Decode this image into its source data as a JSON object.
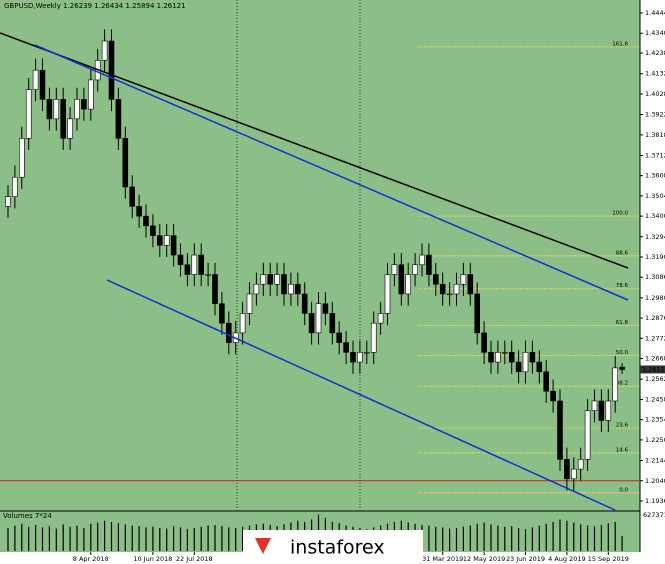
{
  "chart_data": {
    "type": "candlestick",
    "title": "GBPUSD,Weekly  1.26239 1.26434 1.25894 1.26121",
    "last_price": {
      "value": 1.26121,
      "label": "1.26121"
    },
    "ylim": [
      1.1936,
      1.4444
    ],
    "yticks": [
      {
        "value": 1.4444,
        "label": "1.44440"
      },
      {
        "value": 1.434,
        "label": "1.43400"
      },
      {
        "value": 1.4238,
        "label": "1.42380"
      },
      {
        "value": 1.4132,
        "label": "1.41320"
      },
      {
        "value": 1.4028,
        "label": "1.40280"
      },
      {
        "value": 1.3922,
        "label": "1.39220"
      },
      {
        "value": 1.3818,
        "label": "1.38180"
      },
      {
        "value": 1.3712,
        "label": "1.37120"
      },
      {
        "value": 1.3608,
        "label": "1.36080"
      },
      {
        "value": 1.3504,
        "label": "1.35040"
      },
      {
        "value": 1.34,
        "label": "1.34000"
      },
      {
        "value": 1.3294,
        "label": "1.32940"
      },
      {
        "value": 1.319,
        "label": "1.31900"
      },
      {
        "value": 1.3086,
        "label": "1.30860"
      },
      {
        "value": 1.298,
        "label": "1.29800"
      },
      {
        "value": 1.2876,
        "label": "1.28760"
      },
      {
        "value": 1.2772,
        "label": "1.27720"
      },
      {
        "value": 1.2668,
        "label": "1.26680"
      },
      {
        "value": 1.2562,
        "label": "1.25620"
      },
      {
        "value": 1.2458,
        "label": "1.24580"
      },
      {
        "value": 1.2354,
        "label": "1.23540"
      },
      {
        "value": 1.225,
        "label": "1.22500"
      },
      {
        "value": 1.2144,
        "label": "1.21440"
      },
      {
        "value": 1.204,
        "label": "1.20400"
      },
      {
        "value": 1.1936,
        "label": "1.19360"
      }
    ],
    "categories": [
      null,
      null,
      null,
      null,
      null,
      null,
      null,
      null,
      null,
      null,
      null,
      null,
      "8 Apr 2018",
      null,
      null,
      null,
      null,
      null,
      null,
      null,
      null,
      "10 Jun 2018",
      null,
      null,
      null,
      null,
      null,
      "22 Jul 2018",
      null,
      null,
      null,
      null,
      null,
      null,
      null,
      null,
      null,
      null,
      null,
      null,
      null,
      null,
      null,
      null,
      null,
      null,
      null,
      null,
      null,
      null,
      null,
      null,
      null,
      null,
      null,
      null,
      null,
      null,
      null,
      null,
      null,
      null,
      null,
      "31 Mar 2019",
      null,
      null,
      null,
      null,
      null,
      "12 May 2019",
      null,
      null,
      null,
      null,
      null,
      "23 Jun 2019",
      null,
      null,
      null,
      null,
      null,
      "4 Aug 2019",
      null,
      null,
      null,
      null,
      null,
      "15 Sep 2019",
      null,
      null
    ],
    "open": [
      1.345,
      1.35,
      1.36,
      1.38,
      1.405,
      1.415,
      1.4,
      1.39,
      1.4,
      1.38,
      1.39,
      1.4,
      1.395,
      1.41,
      1.42,
      1.43,
      1.4,
      1.38,
      1.355,
      1.345,
      1.34,
      1.335,
      1.33,
      1.325,
      1.33,
      1.32,
      1.315,
      1.31,
      1.32,
      1.31,
      1.31,
      1.295,
      1.285,
      1.275,
      1.28,
      1.29,
      1.3,
      1.305,
      1.31,
      1.305,
      1.31,
      1.3,
      1.305,
      1.3,
      1.29,
      1.28,
      1.295,
      1.29,
      1.28,
      1.275,
      1.27,
      1.265,
      1.27,
      1.27,
      1.285,
      1.29,
      1.31,
      1.315,
      1.3,
      1.31,
      1.315,
      1.32,
      1.31,
      1.305,
      1.3,
      1.3,
      1.305,
      1.31,
      1.3,
      1.28,
      1.27,
      1.265,
      1.27,
      1.27,
      1.265,
      1.26,
      1.27,
      1.265,
      1.26,
      1.25,
      1.245,
      1.215,
      1.205,
      1.21,
      1.215,
      1.24,
      1.245,
      1.235,
      1.245,
      1.26239
    ],
    "high": [
      1.356,
      1.366,
      1.386,
      1.411,
      1.421,
      1.421,
      1.406,
      1.406,
      1.406,
      1.396,
      1.406,
      1.406,
      1.416,
      1.426,
      1.436,
      1.436,
      1.406,
      1.386,
      1.361,
      1.351,
      1.346,
      1.341,
      1.336,
      1.336,
      1.336,
      1.326,
      1.321,
      1.326,
      1.326,
      1.316,
      1.316,
      1.301,
      1.291,
      1.286,
      1.296,
      1.306,
      1.311,
      1.316,
      1.316,
      1.316,
      1.316,
      1.311,
      1.311,
      1.306,
      1.296,
      1.301,
      1.301,
      1.296,
      1.286,
      1.281,
      1.276,
      1.276,
      1.276,
      1.291,
      1.296,
      1.316,
      1.321,
      1.321,
      1.316,
      1.321,
      1.326,
      1.326,
      1.316,
      1.311,
      1.306,
      1.311,
      1.316,
      1.316,
      1.306,
      1.286,
      1.276,
      1.276,
      1.276,
      1.276,
      1.271,
      1.276,
      1.276,
      1.271,
      1.266,
      1.256,
      1.251,
      1.221,
      1.216,
      1.221,
      1.246,
      1.251,
      1.251,
      1.251,
      1.268,
      1.26434
    ],
    "low": [
      1.339,
      1.344,
      1.354,
      1.374,
      1.399,
      1.394,
      1.384,
      1.384,
      1.374,
      1.374,
      1.384,
      1.389,
      1.389,
      1.404,
      1.414,
      1.394,
      1.374,
      1.349,
      1.339,
      1.334,
      1.329,
      1.324,
      1.319,
      1.319,
      1.314,
      1.309,
      1.304,
      1.304,
      1.304,
      1.304,
      1.289,
      1.279,
      1.269,
      1.269,
      1.274,
      1.284,
      1.294,
      1.299,
      1.299,
      1.299,
      1.294,
      1.294,
      1.294,
      1.284,
      1.274,
      1.274,
      1.284,
      1.274,
      1.269,
      1.264,
      1.259,
      1.259,
      1.264,
      1.264,
      1.279,
      1.284,
      1.304,
      1.294,
      1.294,
      1.304,
      1.309,
      1.304,
      1.299,
      1.294,
      1.294,
      1.294,
      1.299,
      1.294,
      1.274,
      1.264,
      1.259,
      1.259,
      1.264,
      1.259,
      1.254,
      1.254,
      1.259,
      1.254,
      1.244,
      1.239,
      1.209,
      1.199,
      1.199,
      1.204,
      1.209,
      1.234,
      1.229,
      1.229,
      1.239,
      1.25894
    ],
    "close": [
      1.35,
      1.36,
      1.38,
      1.405,
      1.415,
      1.4,
      1.39,
      1.4,
      1.38,
      1.39,
      1.4,
      1.395,
      1.41,
      1.42,
      1.43,
      1.4,
      1.38,
      1.355,
      1.345,
      1.34,
      1.335,
      1.33,
      1.325,
      1.33,
      1.32,
      1.315,
      1.31,
      1.32,
      1.31,
      1.31,
      1.295,
      1.285,
      1.275,
      1.28,
      1.29,
      1.3,
      1.305,
      1.31,
      1.305,
      1.31,
      1.3,
      1.305,
      1.3,
      1.29,
      1.28,
      1.295,
      1.29,
      1.28,
      1.275,
      1.27,
      1.265,
      1.27,
      1.27,
      1.285,
      1.29,
      1.31,
      1.315,
      1.3,
      1.31,
      1.315,
      1.32,
      1.31,
      1.305,
      1.3,
      1.3,
      1.305,
      1.31,
      1.3,
      1.28,
      1.27,
      1.265,
      1.27,
      1.27,
      1.265,
      1.26,
      1.27,
      1.265,
      1.26,
      1.25,
      1.245,
      1.215,
      1.205,
      1.21,
      1.215,
      1.24,
      1.245,
      1.235,
      1.245,
      1.262,
      1.26121
    ],
    "up_color": "#ffffff",
    "down_color": "#000000",
    "fib_levels": [
      {
        "value": 1.427,
        "label": "161.8"
      },
      {
        "value": 1.34,
        "label": "100.0"
      },
      {
        "value": 1.3196,
        "label": "88.6"
      },
      {
        "value": 1.3027,
        "label": "78.6"
      },
      {
        "value": 1.2838,
        "label": "61.8"
      },
      {
        "value": 1.2684,
        "label": "50.0"
      },
      {
        "value": 1.2526,
        "label": "38.2"
      },
      {
        "value": 1.2311,
        "label": "23.6"
      },
      {
        "value": 1.2183,
        "label": "14.6"
      },
      {
        "value": 1.1978,
        "label": "0.0"
      }
    ],
    "support_level": 1.204,
    "volume_title": "Volumes 7*24",
    "volume_ylim": [
      0,
      627371
    ],
    "volume_ticks": [
      627371
    ],
    "volumes": [
      380000,
      420000,
      450000,
      400000,
      430000,
      390000,
      410000,
      370000,
      440000,
      400000,
      420000,
      380000,
      450000,
      470000,
      500000,
      480000,
      460000,
      440000,
      420000,
      410000,
      390000,
      400000,
      380000,
      370000,
      410000,
      390000,
      360000,
      380000,
      400000,
      420000,
      430000,
      410000,
      390000,
      380000,
      400000,
      420000,
      440000,
      450000,
      430000,
      410000,
      440000,
      470000,
      500000,
      480000,
      520000,
      600000,
      550000,
      480000,
      460000,
      420000,
      400000,
      380000,
      360000,
      390000,
      420000,
      450000,
      480000,
      500000,
      470000,
      450000,
      430000,
      420000,
      400000,
      390000,
      370000,
      380000,
      400000,
      420000,
      450000,
      470000,
      440000,
      420000,
      400000,
      410000,
      380000,
      360000,
      390000,
      420000,
      450000,
      480000,
      520000,
      500000,
      470000,
      440000,
      420000,
      410000,
      430000,
      460000,
      480000,
      250000
    ],
    "watermark": "instaforex"
  }
}
